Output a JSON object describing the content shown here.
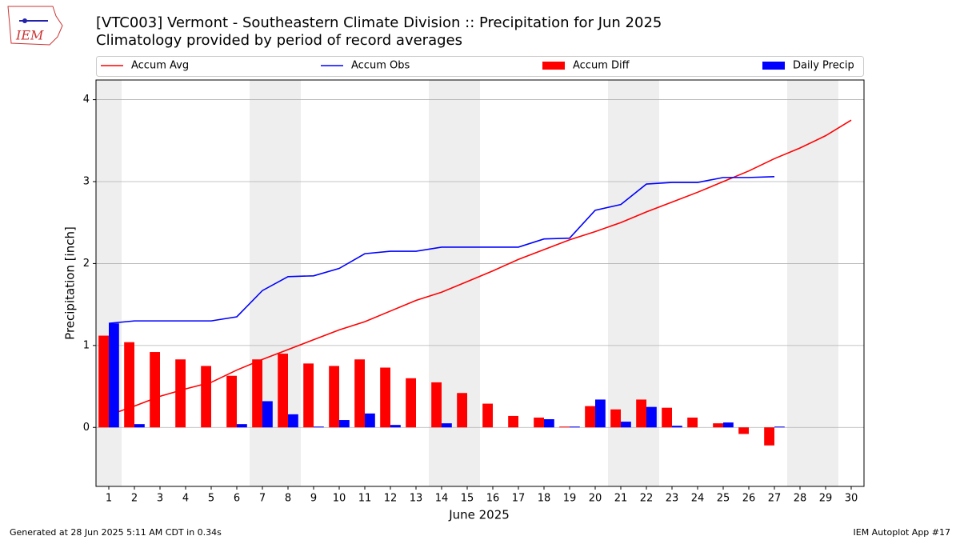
{
  "chart_data": {
    "type": "line",
    "title": "[VTC003] Vermont - Southeastern Climate Division :: Precipitation for Jun 2025",
    "subtitle": "Climatology provided by period of record averages",
    "logo_text": "IEM",
    "x_label": "June 2025",
    "y_label": "Precipitation [inch]",
    "footer_left": "Generated at 28 Jun 2025 5:11 AM CDT in 0.34s",
    "footer_right": "IEM Autoplot App #17",
    "x": [
      1,
      2,
      3,
      4,
      5,
      6,
      7,
      8,
      9,
      10,
      11,
      12,
      13,
      14,
      15,
      16,
      17,
      18,
      19,
      20,
      21,
      22,
      23,
      24,
      25,
      26,
      27,
      28,
      29,
      30
    ],
    "xlim": [
      0.5,
      30.5
    ],
    "xticks": [
      1,
      2,
      3,
      4,
      5,
      6,
      7,
      8,
      9,
      10,
      11,
      12,
      13,
      14,
      15,
      16,
      17,
      18,
      19,
      20,
      21,
      22,
      23,
      24,
      25,
      26,
      27,
      28,
      29,
      30
    ],
    "ylim": [
      -0.72,
      4.24
    ],
    "yticks": [
      0,
      1,
      2,
      3,
      4
    ],
    "grid": true,
    "legend": "top",
    "shaded_ranges": [
      [
        0.5,
        1.5
      ],
      [
        6.5,
        8.5
      ],
      [
        13.5,
        15.5
      ],
      [
        20.5,
        22.5
      ],
      [
        27.5,
        29.5
      ]
    ],
    "series": [
      {
        "name": "Accum Avg",
        "kind": "line",
        "color": "#ff0000",
        "values": [
          0.15,
          0.26,
          0.38,
          0.47,
          0.55,
          0.7,
          0.83,
          0.95,
          1.07,
          1.19,
          1.29,
          1.42,
          1.55,
          1.65,
          1.78,
          1.91,
          2.05,
          2.17,
          2.29,
          2.39,
          2.5,
          2.63,
          2.75,
          2.87,
          3.0,
          3.13,
          3.28,
          3.41,
          3.56,
          3.75
        ]
      },
      {
        "name": "Accum Obs",
        "kind": "line",
        "color": "#0000ff",
        "values": [
          1.27,
          1.3,
          1.3,
          1.3,
          1.3,
          1.35,
          1.67,
          1.84,
          1.85,
          1.94,
          2.12,
          2.15,
          2.15,
          2.2,
          2.2,
          2.2,
          2.2,
          2.3,
          2.31,
          2.65,
          2.72,
          2.97,
          2.99,
          2.99,
          3.05,
          3.05,
          3.06,
          null,
          null,
          null
        ]
      },
      {
        "name": "Accum Diff",
        "kind": "bar",
        "color": "#ff0000",
        "values": [
          1.12,
          1.04,
          0.92,
          0.83,
          0.75,
          0.63,
          0.83,
          0.9,
          0.78,
          0.75,
          0.83,
          0.73,
          0.6,
          0.55,
          0.42,
          0.29,
          0.14,
          0.12,
          0.01,
          0.26,
          0.22,
          0.34,
          0.24,
          0.12,
          0.05,
          -0.08,
          -0.22,
          null,
          null,
          null
        ]
      },
      {
        "name": "Daily Precip",
        "kind": "bar",
        "color": "#0000ff",
        "values": [
          1.27,
          0.04,
          0,
          0,
          0,
          0.04,
          0.32,
          0.16,
          0.01,
          0.09,
          0.17,
          0.03,
          0,
          0.05,
          0,
          0,
          0,
          0.1,
          0.01,
          0.34,
          0.07,
          0.25,
          0.02,
          0,
          0.06,
          0,
          0.01,
          null,
          null,
          null
        ]
      }
    ]
  }
}
